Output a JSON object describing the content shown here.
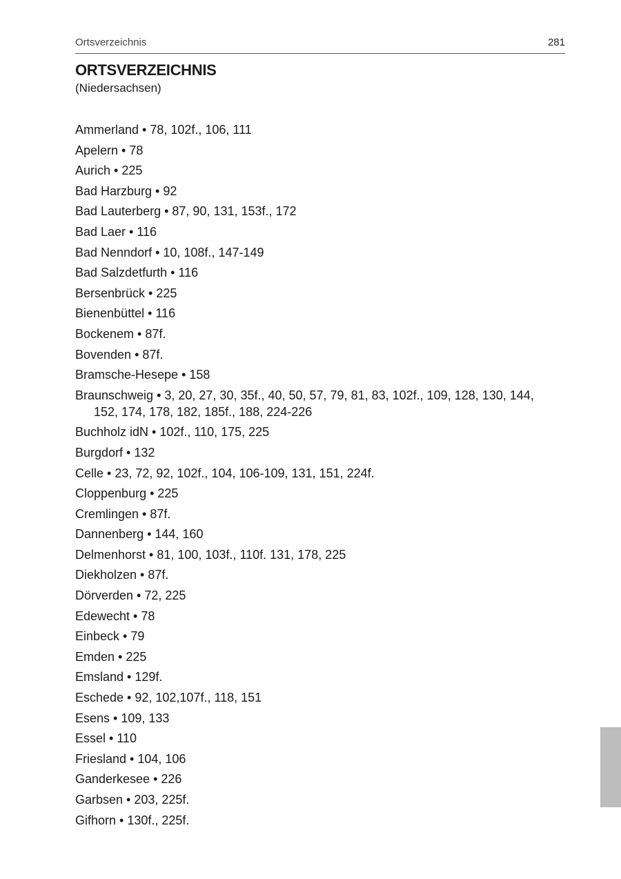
{
  "running_head": {
    "section": "Ortsverzeichnis",
    "page_number": "281"
  },
  "title": "ORTSVERZEICHNIS",
  "subtitle": "(Niedersachsen)",
  "thumb_tab_color": "#bdbdbd",
  "entries": [
    "Ammerland • 78, 102f., 106, 111",
    "Apelern • 78",
    "Aurich • 225",
    "Bad Harzburg • 92",
    "Bad Lauterberg • 87, 90, 131, 153f., 172",
    "Bad Laer • 116",
    "Bad Nenndorf • 10, 108f., 147-149",
    "Bad Salzdetfurth • 116",
    "Bersenbrück • 225",
    "Bienenbüttel • 116",
    "Bockenem • 87f.",
    "Bovenden • 87f.",
    "Bramsche-Hesepe • 158",
    "Braunschweig • 3, 20, 27, 30, 35f., 40, 50, 57, 79, 81, 83, 102f., 109, 128, 130, 144, 152, 174, 178, 182, 185f., 188, 224-226",
    "Buchholz idN • 102f., 110, 175, 225",
    "Burgdorf • 132",
    "Celle • 23, 72, 92, 102f., 104, 106-109, 131, 151, 224f.",
    "Cloppenburg • 225",
    "Cremlingen • 87f.",
    "Dannenberg • 144, 160",
    "Delmenhorst • 81, 100, 103f., 110f. 131, 178, 225",
    "Diekholzen • 87f.",
    "Dörverden • 72, 225",
    "Edewecht • 78",
    "Einbeck • 79",
    "Emden • 225",
    "Emsland • 129f.",
    "Eschede • 92, 102,107f., 118, 151",
    "Esens • 109, 133",
    "Essel • 110",
    "Friesland • 104, 106",
    "Ganderkesee • 226",
    "Garbsen • 203, 225f.",
    "Gifhorn • 130f., 225f."
  ]
}
